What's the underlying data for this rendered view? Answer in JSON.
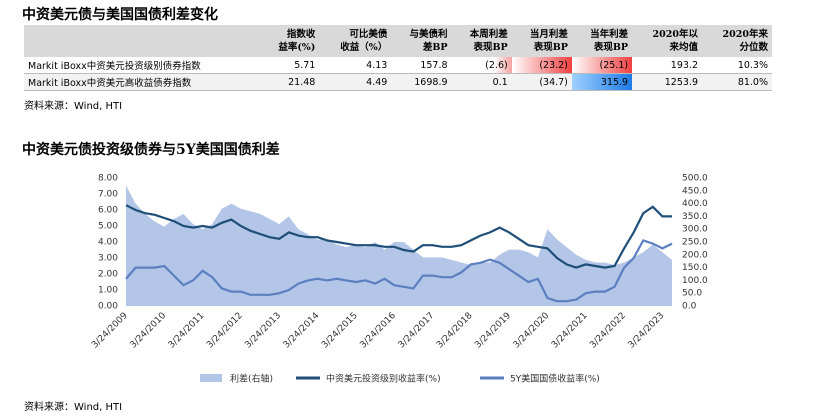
{
  "header": {
    "title": "中资美元债与美国国债利差变化"
  },
  "table": {
    "header": [
      "",
      "指数收\n益率(%)",
      "可比美债\n收益（%）",
      "与美债利\n差BP",
      "本周利差\n表现BP",
      "当月利差\n表现BP",
      "当年利差\n表现BP",
      "2020年以\n来均值",
      "2020年来\n分位数"
    ],
    "rows": [
      [
        "Markit iBoxx中资美元投资级别债券指数",
        "5.71",
        "4.13",
        "157.8",
        "(2.6)",
        "(23.2)",
        "(25.1)",
        "193.2",
        "10.3%"
      ],
      [
        "Markit iBoxx中资美元高收益债券指数",
        "21.48",
        "4.49",
        "1698.9",
        "0.1",
        "(34.7)",
        "315.9",
        "1253.9",
        "81.0%"
      ]
    ]
  },
  "source1": "资料来源：Wind, HTI",
  "chart_data": {
    "type": "line",
    "title": "中资美元债投资级债券与5Y美国国债利差",
    "categories": [
      "3/24/2009",
      null,
      null,
      null,
      "3/24/2010",
      null,
      null,
      null,
      "3/24/2011",
      null,
      null,
      null,
      "3/24/2012",
      null,
      null,
      null,
      "3/24/2013",
      null,
      null,
      null,
      "3/24/2014",
      null,
      null,
      null,
      "3/24/2015",
      null,
      null,
      null,
      "3/24/2016",
      null,
      null,
      null,
      "3/24/2017",
      null,
      null,
      null,
      "3/24/2018",
      null,
      null,
      null,
      "3/24/2019",
      null,
      null,
      null,
      "3/24/2020",
      null,
      null,
      null,
      "3/24/2021",
      null,
      null,
      null,
      "3/24/2022",
      null,
      null,
      null,
      "3/24/2023",
      null
    ],
    "series": [
      {
        "name": "利差(右轴)",
        "color": "#b4c6e7",
        "kind": "area",
        "axis": "y2",
        "values": [
          470,
          400,
          360,
          330,
          310,
          340,
          360,
          320,
          300,
          320,
          380,
          400,
          380,
          370,
          360,
          340,
          320,
          350,
          300,
          280,
          260,
          260,
          240,
          230,
          240,
          230,
          250,
          220,
          250,
          250,
          220,
          190,
          190,
          190,
          180,
          170,
          160,
          170,
          170,
          200,
          220,
          220,
          210,
          190,
          300,
          260,
          230,
          200,
          180,
          170,
          170,
          160,
          170,
          190,
          210,
          240,
          210,
          180
        ]
      },
      {
        "name": "中资美元投资级别收益率(%)",
        "color": "#1f4e79",
        "kind": "line",
        "values": [
          6.3,
          6.0,
          5.8,
          5.7,
          5.5,
          5.3,
          5.0,
          4.9,
          5.0,
          4.9,
          5.2,
          5.4,
          5.0,
          4.7,
          4.5,
          4.3,
          4.2,
          4.6,
          4.4,
          4.3,
          4.3,
          4.1,
          4.0,
          3.9,
          3.8,
          3.8,
          3.8,
          3.7,
          3.7,
          3.5,
          3.4,
          3.8,
          3.8,
          3.7,
          3.7,
          3.8,
          4.1,
          4.4,
          4.6,
          4.9,
          4.6,
          4.2,
          3.8,
          3.7,
          3.6,
          3.0,
          2.6,
          2.4,
          2.6,
          2.5,
          2.4,
          2.5,
          3.6,
          4.6,
          5.8,
          6.2,
          5.6,
          5.6
        ]
      },
      {
        "name": "5Y美国国债收益率(%)",
        "color": "#5b7fc0",
        "kind": "line",
        "values": [
          1.7,
          2.4,
          2.4,
          2.4,
          2.5,
          1.9,
          1.3,
          1.6,
          2.2,
          1.8,
          1.1,
          0.9,
          0.9,
          0.7,
          0.7,
          0.7,
          0.8,
          1.0,
          1.4,
          1.6,
          1.7,
          1.6,
          1.7,
          1.6,
          1.5,
          1.6,
          1.4,
          1.7,
          1.3,
          1.2,
          1.1,
          1.9,
          1.9,
          1.8,
          1.8,
          2.1,
          2.6,
          2.7,
          2.9,
          2.7,
          2.3,
          1.9,
          1.5,
          1.7,
          0.5,
          0.3,
          0.3,
          0.4,
          0.8,
          0.9,
          0.9,
          1.2,
          2.4,
          3.0,
          4.1,
          3.9,
          3.6,
          3.9
        ]
      }
    ],
    "ylim": [
      0,
      8
    ],
    "yticks": [
      {
        "value": 0,
        "label": "0.00"
      },
      {
        "value": 1,
        "label": "1.00"
      },
      {
        "value": 2,
        "label": "2.00"
      },
      {
        "value": 3,
        "label": "3.00"
      },
      {
        "value": 4,
        "label": "4.00"
      },
      {
        "value": 5,
        "label": "5.00"
      },
      {
        "value": 6,
        "label": "6.00"
      },
      {
        "value": 7,
        "label": "7.00"
      },
      {
        "value": 8,
        "label": "8.00"
      }
    ],
    "y2lim": [
      0,
      500
    ],
    "y2ticks": [
      {
        "value": 0,
        "label": "0.0"
      },
      {
        "value": 50,
        "label": "50.0"
      },
      {
        "value": 100,
        "label": "100.0"
      },
      {
        "value": 150,
        "label": "150.0"
      },
      {
        "value": 200,
        "label": "200.0"
      },
      {
        "value": 250,
        "label": "250.0"
      },
      {
        "value": 300,
        "label": "300.0"
      },
      {
        "value": 350,
        "label": "350.0"
      },
      {
        "value": 400,
        "label": "400.0"
      },
      {
        "value": 450,
        "label": "450.0"
      },
      {
        "value": 500,
        "label": "500.0"
      }
    ]
  },
  "source2": "资料来源：Wind, HTI"
}
